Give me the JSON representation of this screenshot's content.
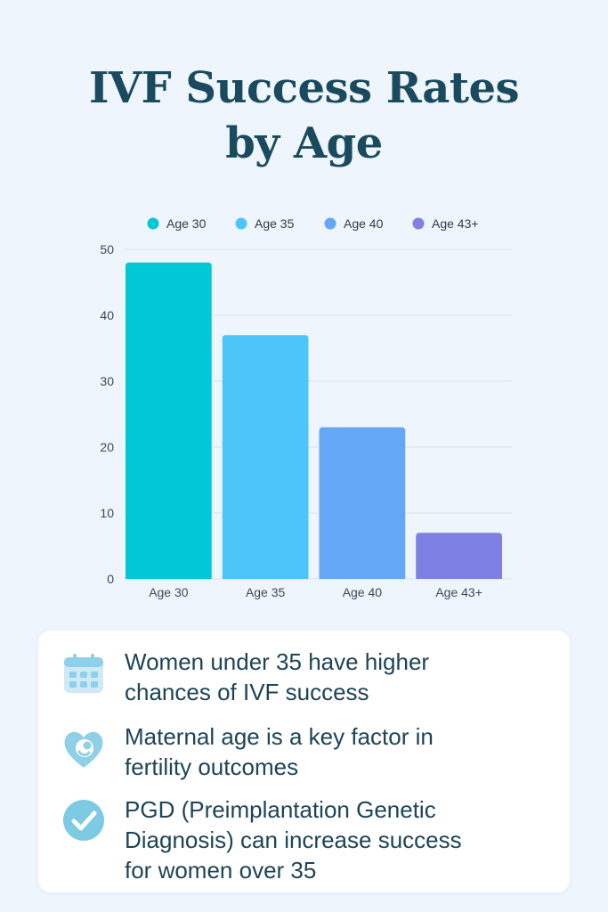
{
  "title_lines": [
    "IVF Success Rates",
    "by Age"
  ],
  "chart_data": {
    "type": "bar",
    "categories": [
      "Age 30",
      "Age 35",
      "Age 40",
      "Age 43+"
    ],
    "values": [
      48,
      37,
      23,
      7
    ],
    "colors": [
      "#00c8d7",
      "#4cc5f8",
      "#64a7f6",
      "#7f80e4"
    ],
    "legend": [
      "Age 30",
      "Age 35",
      "Age 40",
      "Age 43+"
    ],
    "legend_position": "top",
    "ylim": [
      0,
      50
    ],
    "yticks": [
      0,
      10,
      20,
      30,
      40,
      50
    ],
    "grid": true
  },
  "facts": [
    {
      "icon": "calendar-icon",
      "lines": [
        "Women under 35 have higher",
        "chances of IVF success"
      ]
    },
    {
      "icon": "fertility-heart-icon",
      "lines": [
        "Maternal age is a key factor in",
        "fertility outcomes"
      ]
    },
    {
      "icon": "checkmark-icon",
      "lines": [
        "PGD (Preimplantation Genetic",
        "Diagnosis) can increase success",
        "for women over 35"
      ]
    }
  ]
}
